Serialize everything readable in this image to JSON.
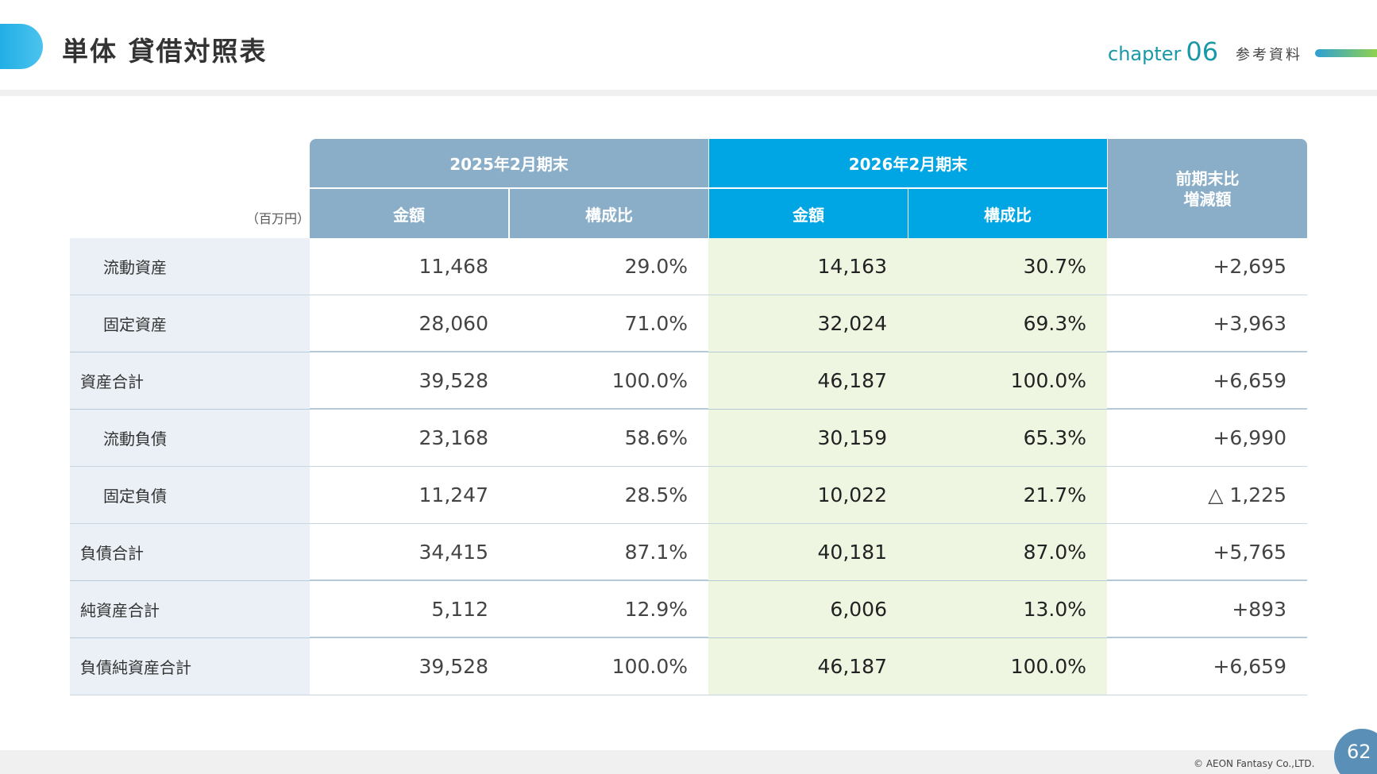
{
  "header": {
    "title": "単体 貸借対照表",
    "chapter_word": "chapter",
    "chapter_num": "06",
    "section": "参考資料"
  },
  "table": {
    "unit": "（百万円）",
    "period_prev": "2025年2月期末",
    "period_curr": "2026年2月期末",
    "change_line1": "前期末比",
    "change_line2": "増減額",
    "col_amount": "金額",
    "col_ratio": "構成比",
    "rows": [
      {
        "label": "流動資産",
        "prev_amount": "11,468",
        "prev_ratio": "29.0%",
        "curr_amount": "14,163",
        "curr_ratio": "30.7%",
        "change": "+2,695"
      },
      {
        "label": "固定資産",
        "prev_amount": "28,060",
        "prev_ratio": "71.0%",
        "curr_amount": "32,024",
        "curr_ratio": "69.3%",
        "change": "+3,963"
      },
      {
        "label": "資産合計",
        "prev_amount": "39,528",
        "prev_ratio": "100.0%",
        "curr_amount": "46,187",
        "curr_ratio": "100.0%",
        "change": "+6,659"
      },
      {
        "label": "流動負債",
        "prev_amount": "23,168",
        "prev_ratio": "58.6%",
        "curr_amount": "30,159",
        "curr_ratio": "65.3%",
        "change": "+6,990"
      },
      {
        "label": "固定負債",
        "prev_amount": "11,247",
        "prev_ratio": "28.5%",
        "curr_amount": "10,022",
        "curr_ratio": "21.7%",
        "change": "△ 1,225"
      },
      {
        "label": "負債合計",
        "prev_amount": "34,415",
        "prev_ratio": "87.1%",
        "curr_amount": "40,181",
        "curr_ratio": "87.0%",
        "change": "+5,765"
      },
      {
        "label": "純資産合計",
        "prev_amount": "5,112",
        "prev_ratio": "12.9%",
        "curr_amount": "6,006",
        "curr_ratio": "13.0%",
        "change": "+893"
      },
      {
        "label": "負債純資産合計",
        "prev_amount": "39,528",
        "prev_ratio": "100.0%",
        "curr_amount": "46,187",
        "curr_ratio": "100.0%",
        "change": "+6,659"
      }
    ]
  },
  "footer": {
    "copyright": "© AEON Fantasy Co.,LTD.",
    "page": "62"
  },
  "colors": {
    "header_gray": "#8aaec7",
    "header_blue": "#00a5e3",
    "current_highlight": "#eef6e2",
    "label_bg": "#eaf0f5",
    "chapter_teal": "#1a98a8"
  }
}
